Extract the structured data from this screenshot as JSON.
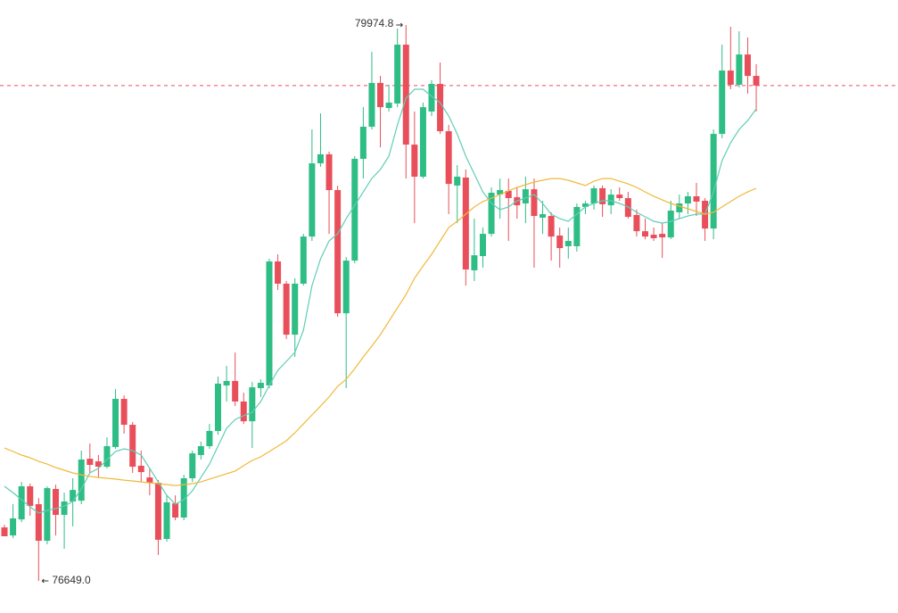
{
  "chart_data": {
    "type": "candlestick",
    "ylim": [
      76457,
      80124
    ],
    "up_color": "#2ebd85",
    "down_color": "#e94f5b",
    "open": [
      76969,
      76921,
      77017,
      77215,
      77108,
      76889,
      77199,
      77044,
      77124,
      77129,
      77380,
      77364,
      77332,
      77450,
      77738,
      77583,
      77338,
      77268,
      77236,
      76900,
      77113,
      77028,
      77263,
      77402,
      77455,
      77546,
      77818,
      77845,
      77722,
      77604,
      77802,
      77818,
      78560,
      78427,
      78122,
      78427,
      78709,
      79147,
      79201,
      78987,
      78250,
      78565,
      79174,
      79366,
      79628,
      79478,
      79505,
      79857,
      79259,
      79067,
      79457,
      79622,
      79339,
      79014,
      79062,
      78507,
      78592,
      78725,
      78960,
      78982,
      78944,
      78907,
      78992,
      78822,
      78832,
      78715,
      78651,
      78651,
      78886,
      78907,
      78998,
      78896,
      78960,
      78939,
      78838,
      78741,
      78720,
      78725,
      78704,
      78854,
      78907,
      78950,
      78923,
      78757,
      79323,
      79702,
      79617,
      79798,
      79670
    ],
    "high": [
      76985,
      77108,
      77241,
      77231,
      77145,
      77215,
      77225,
      77177,
      77263,
      77428,
      77471,
      77402,
      77508,
      77797,
      77759,
      77599,
      77428,
      77322,
      77252,
      77161,
      77161,
      77284,
      77428,
      77482,
      77588,
      77871,
      77935,
      78015,
      77775,
      77839,
      77855,
      78576,
      78603,
      78443,
      78459,
      78725,
      79350,
      79446,
      79217,
      79014,
      78587,
      79190,
      79483,
      79814,
      79670,
      79617,
      79953,
      79974.8,
      79457,
      79510,
      79644,
      79750,
      79377,
      79136,
      79110,
      78816,
      78763,
      79003,
      79056,
      79056,
      79003,
      79067,
      79056,
      78923,
      78854,
      78763,
      78763,
      78907,
      78923,
      79014,
      79014,
      78992,
      79003,
      78976,
      78870,
      78816,
      78763,
      78789,
      78923,
      78960,
      78976,
      79030,
      78939,
      79350,
      79857,
      79964,
      79937,
      79900,
      79740
    ],
    "low": [
      76916,
      76905,
      77001,
      77039,
      76649,
      76868,
      76921,
      76841,
      76975,
      77108,
      77295,
      77268,
      77322,
      77439,
      77530,
      77295,
      77241,
      77161,
      76804,
      76884,
      77012,
      77012,
      77241,
      77375,
      77439,
      77524,
      77722,
      77695,
      77588,
      77444,
      77749,
      77802,
      78389,
      78096,
      77989,
      78416,
      78683,
      79126,
      78725,
      78229,
      77802,
      78549,
      79056,
      79350,
      79243,
      79457,
      79483,
      79056,
      78789,
      79056,
      79430,
      79323,
      78843,
      78789,
      78416,
      78443,
      78523,
      78709,
      78816,
      78683,
      78816,
      78789,
      78523,
      78725,
      78565,
      78523,
      78576,
      78619,
      78843,
      78870,
      78827,
      78843,
      78923,
      78816,
      78709,
      78693,
      78683,
      78581,
      78693,
      78816,
      78843,
      78832,
      78683,
      78693,
      79297,
      79590,
      79601,
      79564,
      79457
    ],
    "close": [
      76916,
      77023,
      77215,
      77097,
      76889,
      77204,
      77044,
      77124,
      77193,
      77375,
      77343,
      77332,
      77455,
      77738,
      77583,
      77332,
      77300,
      77236,
      76895,
      77119,
      77028,
      77263,
      77412,
      77455,
      77546,
      77829,
      77845,
      77722,
      77604,
      77807,
      77834,
      78560,
      78427,
      78122,
      78427,
      78709,
      79147,
      79201,
      78987,
      78250,
      78565,
      79174,
      79366,
      79628,
      79483,
      79510,
      79857,
      79259,
      79067,
      79483,
      79622,
      79339,
      79024,
      79067,
      78512,
      78597,
      78725,
      78971,
      78987,
      78939,
      78896,
      78992,
      78832,
      78843,
      78709,
      78640,
      78683,
      78886,
      78907,
      78998,
      78902,
      78960,
      78939,
      78827,
      78741,
      78709,
      78699,
      78704,
      78864,
      78907,
      78950,
      78918,
      78757,
      79323,
      79702,
      79617,
      79798,
      79670,
      79612
    ],
    "lines": [
      {
        "color": "#5fcdb6",
        "values": [
          77215,
          77177,
          77135,
          77092,
          77055,
          77071,
          77081,
          77097,
          77124,
          77199,
          77295,
          77322,
          77375,
          77423,
          77439,
          77428,
          77402,
          77322,
          77241,
          77161,
          77108,
          77135,
          77188,
          77268,
          77348,
          77455,
          77562,
          77615,
          77637,
          77658,
          77722,
          77818,
          77909,
          77962,
          78016,
          78149,
          78416,
          78576,
          78683,
          78725,
          78816,
          78896,
          78976,
          79056,
          79110,
          79190,
          79377,
          79537,
          79590,
          79590,
          79548,
          79510,
          79430,
          79323,
          79190,
          79083,
          78976,
          78907,
          78870,
          78886,
          78923,
          78939,
          78960,
          78907,
          78843,
          78816,
          78800,
          78843,
          78886,
          78907,
          78923,
          78923,
          78907,
          78886,
          78854,
          78827,
          78800,
          78789,
          78800,
          78816,
          78832,
          78843,
          78843,
          78976,
          79163,
          79270,
          79350,
          79403,
          79473
        ]
      },
      {
        "color": "#f0b93a",
        "values": [
          77444,
          77423,
          77402,
          77386,
          77364,
          77348,
          77327,
          77311,
          77295,
          77284,
          77274,
          77268,
          77263,
          77258,
          77252,
          77247,
          77241,
          77236,
          77231,
          77225,
          77220,
          77225,
          77231,
          77241,
          77258,
          77274,
          77290,
          77306,
          77338,
          77370,
          77391,
          77423,
          77455,
          77487,
          77535,
          77588,
          77642,
          77695,
          77749,
          77813,
          77855,
          77919,
          77989,
          78053,
          78122,
          78202,
          78282,
          78362,
          78459,
          78533,
          78603,
          78683,
          78763,
          78800,
          78843,
          78886,
          78918,
          78939,
          78960,
          78982,
          79003,
          79019,
          79035,
          79046,
          79056,
          79056,
          79046,
          79030,
          79014,
          79040,
          79056,
          79056,
          79040,
          79024,
          79003,
          78976,
          78950,
          78928,
          78907,
          78891,
          78875,
          78859,
          78843,
          78854,
          78886,
          78918,
          78950,
          78976,
          78998
        ]
      }
    ],
    "price_line": {
      "value": 79612,
      "color": "#e94f5b"
    },
    "max_label": 79974.8,
    "min_label": {
      "value": 76649,
      "label": "76649.0"
    }
  }
}
